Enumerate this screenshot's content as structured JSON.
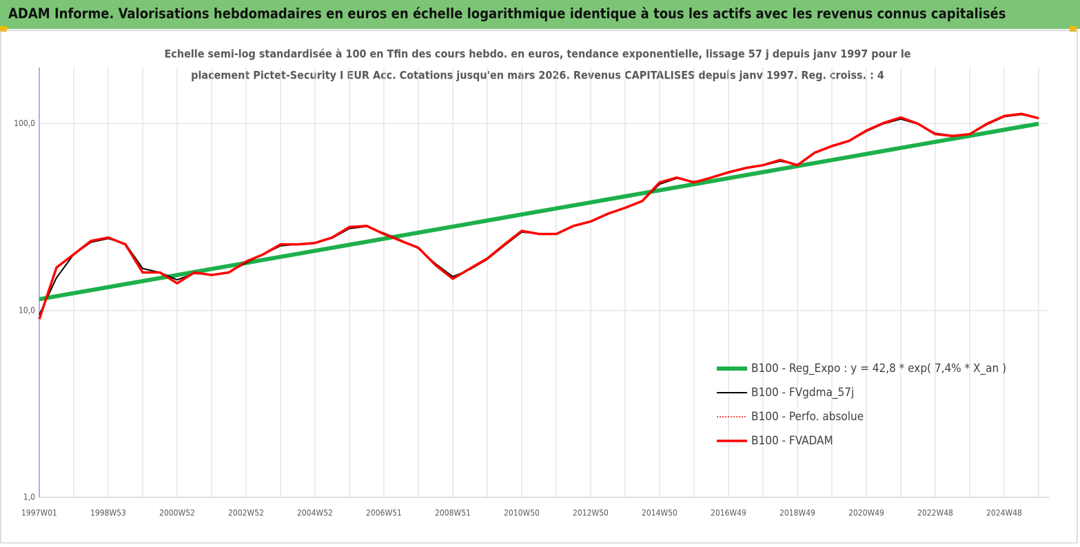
{
  "header": {
    "title": "ADAM Informe. Valorisations hebdomadaires en euros en échelle logarithmique identique à tous les actifs avec les revenus connus capitalisés"
  },
  "chart_data": {
    "type": "line",
    "title": [
      "Echelle semi-log standardisée à 100 en Tfin des cours hebdo. en euros, tendance exponentielle, lissage 57 j depuis janv 1997 pour le",
      "placement Pictet-Security I EUR Acc. Cotations jusqu'en mars 2026. Revenus CAPITALISES depuis janv 1997. Reg. croiss. : 4"
    ],
    "categories": [
      "1997W01",
      null,
      null,
      null,
      "1998W53",
      null,
      null,
      null,
      "2000W52",
      null,
      null,
      null,
      "2002W52",
      null,
      null,
      null,
      "2004W52",
      null,
      null,
      null,
      "2006W51",
      null,
      null,
      null,
      "2008W51",
      null,
      null,
      null,
      "2010W50",
      null,
      null,
      null,
      "2012W50",
      null,
      null,
      null,
      "2014W50",
      null,
      null,
      null,
      "2016W49",
      null,
      null,
      null,
      "2018W49",
      null,
      null,
      null,
      "2020W49",
      null,
      null,
      null,
      "2022W48",
      null,
      null,
      null,
      "2024W48",
      null,
      null
    ],
    "log_scale": true,
    "ylim": [
      1,
      200
    ],
    "yticks": [
      {
        "value": 1,
        "label": "1,0"
      },
      {
        "value": 10,
        "label": "10,0"
      },
      {
        "value": 100,
        "label": "100,0"
      }
    ],
    "grid": true,
    "legend": "right",
    "series": [
      {
        "name": "B100 - Reg_Expo : y = 42,8 * exp( 7,4% *  X_an )",
        "color": "#1db04b",
        "width": 6,
        "style": "solid",
        "values": [
          11.5,
          11.94,
          12.39,
          12.86,
          13.35,
          13.86,
          14.38,
          14.93,
          15.5,
          16.09,
          16.7,
          17.33,
          17.99,
          18.68,
          19.39,
          20.12,
          20.89,
          21.68,
          22.51,
          23.36,
          24.25,
          25.17,
          26.13,
          27.12,
          28.15,
          29.22,
          30.33,
          31.48,
          32.68,
          33.92,
          35.21,
          36.55,
          37.94,
          39.38,
          40.88,
          42.43,
          44.04,
          45.71,
          47.45,
          49.25,
          51.12,
          53.07,
          55.08,
          57.18,
          59.35,
          61.6,
          63.94,
          66.37,
          68.9,
          71.51,
          74.23,
          77.05,
          79.98,
          83.02,
          86.17,
          89.45,
          92.85,
          96.37,
          100
        ]
      },
      {
        "name": "B100 - FVgdma_57j",
        "color": "#000000",
        "width": 2,
        "style": "solid",
        "values": [
          9.5,
          15,
          20,
          23.2,
          24.3,
          22.8,
          16.8,
          16,
          14.6,
          15.8,
          15.6,
          16,
          18,
          20,
          22.2,
          22.6,
          23,
          24.4,
          27.5,
          28.2,
          26,
          23.8,
          21.5,
          17.8,
          15.2,
          16.6,
          18.8,
          22.3,
          26.3,
          25.8,
          25.6,
          28.2,
          29.8,
          32.8,
          35.3,
          38.4,
          47.5,
          51,
          49,
          51.2,
          54.6,
          57.6,
          59.8,
          63,
          60.5,
          69.5,
          75.5,
          80.5,
          91,
          100,
          106,
          99.5,
          89,
          86.5,
          88,
          99,
          109,
          112,
          107
        ]
      },
      {
        "name": "B100 - Perfo. absolue",
        "color": "#ff0000",
        "width": 1.5,
        "style": "dotted",
        "values": [
          9,
          17,
          20,
          23.6,
          24.6,
          22.6,
          16,
          16,
          14,
          16,
          15.5,
          16,
          18.3,
          20,
          22.6,
          22.6,
          23,
          24.6,
          28,
          28.4,
          25.7,
          23.6,
          21.7,
          17.5,
          14.8,
          16.8,
          19,
          22.6,
          26.7,
          25.7,
          25.7,
          28.4,
          30,
          33,
          35.5,
          38.6,
          48.5,
          51.5,
          48.5,
          51.5,
          55,
          58,
          60,
          64,
          60,
          70,
          76,
          81,
          92,
          101,
          108,
          100,
          88,
          86,
          88,
          100,
          110,
          113,
          107
        ]
      },
      {
        "name": "B100 - FVADAM",
        "color": "#ff0000",
        "width": 3.5,
        "style": "solid",
        "values": [
          9,
          17,
          20,
          23.6,
          24.6,
          22.6,
          16,
          16,
          14,
          16,
          15.5,
          16,
          18.3,
          20,
          22.6,
          22.6,
          23,
          24.6,
          28,
          28.4,
          25.7,
          23.6,
          21.7,
          17.5,
          14.8,
          16.8,
          19,
          22.6,
          26.7,
          25.7,
          25.7,
          28.4,
          30,
          33,
          35.5,
          38.6,
          48.5,
          51.5,
          48.5,
          51.5,
          55,
          58,
          60,
          64,
          60,
          70,
          76,
          81,
          92,
          101,
          108,
          100,
          88,
          86,
          88,
          100,
          110,
          113,
          107
        ]
      }
    ]
  }
}
